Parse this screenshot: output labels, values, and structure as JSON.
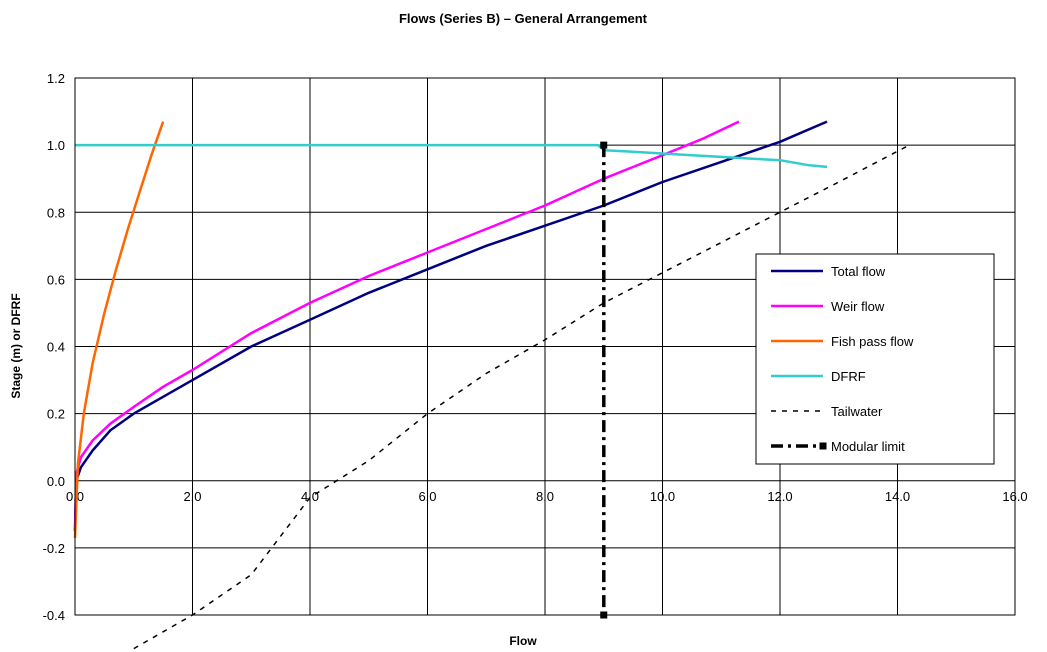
{
  "chart_data": {
    "type": "line",
    "title": "Flows (Series B) – General Arrangement",
    "xlabel": "Flow",
    "ylabel": "Stage (m) or DFRF",
    "xlim": [
      0,
      16
    ],
    "ylim": [
      -0.4,
      1.2
    ],
    "x_ticks": [
      "0.0",
      "2.0",
      "4.0",
      "6.0",
      "8.0",
      "10.0",
      "12.0",
      "14.0",
      "16.0"
    ],
    "y_ticks": [
      "-0.4",
      "-0.2",
      "0.0",
      "0.2",
      "0.4",
      "0.6",
      "0.8",
      "1.0",
      "1.2"
    ],
    "grid": true,
    "legend_position": "right",
    "series": [
      {
        "name": "Total flow",
        "color": "#000080",
        "style": "solid",
        "x": [
          0.0,
          0.02,
          0.1,
          0.3,
          0.6,
          1.0,
          1.5,
          2.0,
          3.0,
          4.0,
          5.0,
          6.0,
          7.0,
          8.0,
          9.0,
          10.0,
          11.0,
          12.0,
          12.8
        ],
        "y": [
          -0.15,
          0.0,
          0.04,
          0.09,
          0.15,
          0.2,
          0.25,
          0.3,
          0.4,
          0.48,
          0.56,
          0.63,
          0.7,
          0.76,
          0.82,
          0.89,
          0.95,
          1.01,
          1.07
        ]
      },
      {
        "name": "Weir flow",
        "color": "#ff00ff",
        "style": "solid",
        "x": [
          0.0,
          0.02,
          0.1,
          0.3,
          0.6,
          1.0,
          1.5,
          2.0,
          3.0,
          4.0,
          5.0,
          6.0,
          7.0,
          8.0,
          9.0,
          10.0,
          10.7,
          11.3
        ],
        "y": [
          -0.15,
          0.02,
          0.07,
          0.12,
          0.17,
          0.22,
          0.28,
          0.33,
          0.44,
          0.53,
          0.61,
          0.68,
          0.75,
          0.82,
          0.9,
          0.97,
          1.02,
          1.07
        ]
      },
      {
        "name": "Fish pass flow",
        "color": "#ff6600",
        "style": "solid",
        "x": [
          0.0,
          0.05,
          0.15,
          0.3,
          0.5,
          0.7,
          0.9,
          1.1,
          1.3,
          1.5
        ],
        "y": [
          -0.17,
          0.05,
          0.2,
          0.35,
          0.5,
          0.63,
          0.75,
          0.86,
          0.97,
          1.07
        ]
      },
      {
        "name": "DFRF",
        "color": "#33cccc",
        "style": "solid",
        "x": [
          0.0,
          2.0,
          4.0,
          6.0,
          8.0,
          8.9,
          9.0,
          9.5,
          10.0,
          10.5,
          11.0,
          11.5,
          12.0,
          12.5,
          12.8
        ],
        "y": [
          1.0,
          1.0,
          1.0,
          1.0,
          1.0,
          1.0,
          0.985,
          0.98,
          0.975,
          0.97,
          0.965,
          0.96,
          0.955,
          0.94,
          0.935
        ]
      },
      {
        "name": "Tailwater",
        "color": "#000000",
        "style": "dotted",
        "x": [
          1.0,
          2.0,
          3.0,
          4.0,
          5.0,
          6.0,
          7.0,
          8.0,
          9.0,
          10.0,
          11.0,
          12.0,
          13.0,
          14.2
        ],
        "y": [
          -0.5,
          -0.4,
          -0.28,
          -0.05,
          0.06,
          0.2,
          0.32,
          0.42,
          0.53,
          0.62,
          0.71,
          0.8,
          0.89,
          1.0
        ]
      },
      {
        "name": "Modular limit",
        "color": "#000000",
        "style": "dashdot",
        "x": [
          9.0,
          9.0
        ],
        "y": [
          1.0,
          -0.4
        ]
      }
    ]
  }
}
